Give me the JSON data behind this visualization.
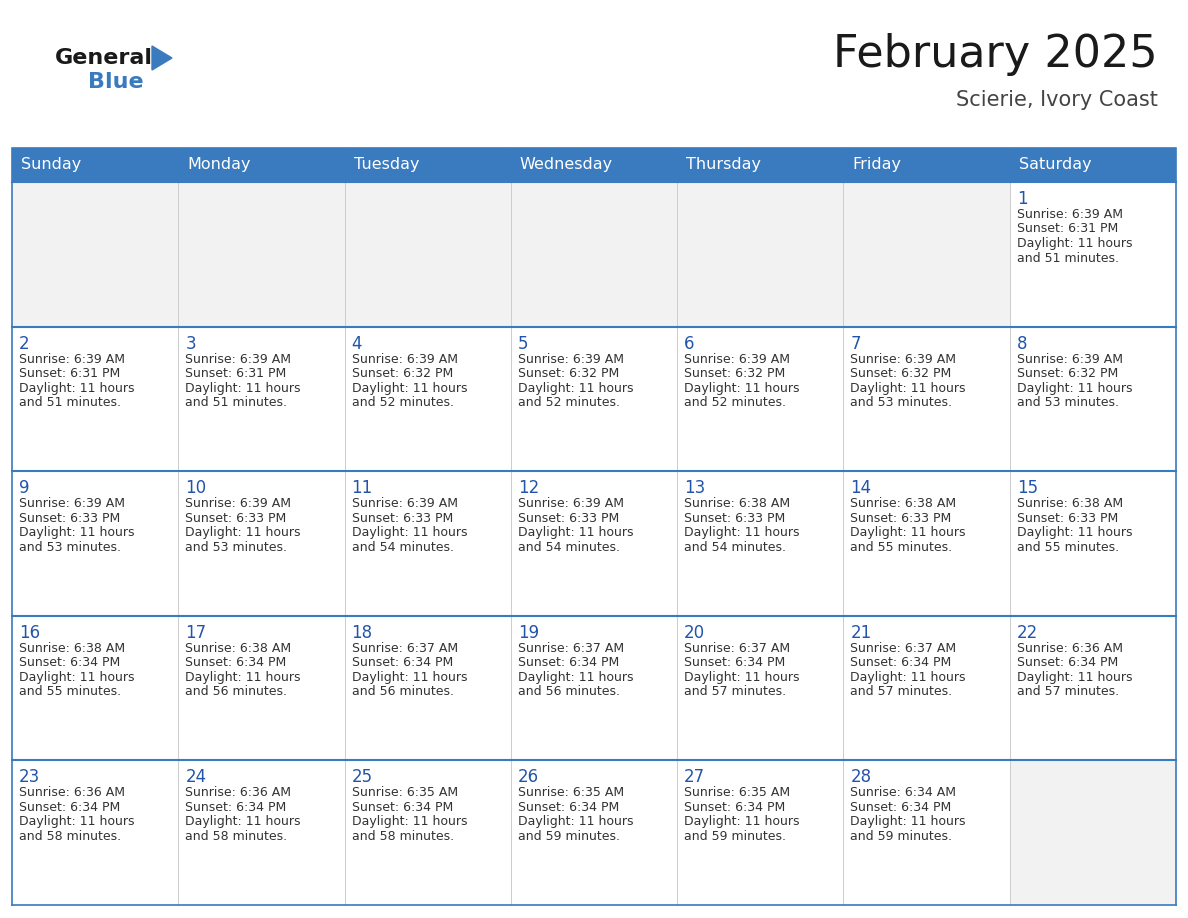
{
  "title": "February 2025",
  "subtitle": "Scierie, Ivory Coast",
  "days_of_week": [
    "Sunday",
    "Monday",
    "Tuesday",
    "Wednesday",
    "Thursday",
    "Friday",
    "Saturday"
  ],
  "header_bg": "#3a7abf",
  "header_text": "#ffffff",
  "cell_bg_white": "#ffffff",
  "cell_bg_gray": "#f2f2f2",
  "border_color": "#3a7abf",
  "cell_border_color": "#cccccc",
  "text_color": "#333333",
  "day_num_color": "#2255aa",
  "title_color": "#1a1a1a",
  "subtitle_color": "#444444",
  "logo_general_color": "#1a1a1a",
  "logo_blue_color": "#3a7abf",
  "calendar": [
    [
      null,
      null,
      null,
      null,
      null,
      null,
      1
    ],
    [
      2,
      3,
      4,
      5,
      6,
      7,
      8
    ],
    [
      9,
      10,
      11,
      12,
      13,
      14,
      15
    ],
    [
      16,
      17,
      18,
      19,
      20,
      21,
      22
    ],
    [
      23,
      24,
      25,
      26,
      27,
      28,
      null
    ]
  ],
  "cell_data": {
    "1": {
      "sunrise": "6:39 AM",
      "sunset": "6:31 PM",
      "daylight": "11 hours and 51 minutes."
    },
    "2": {
      "sunrise": "6:39 AM",
      "sunset": "6:31 PM",
      "daylight": "11 hours and 51 minutes."
    },
    "3": {
      "sunrise": "6:39 AM",
      "sunset": "6:31 PM",
      "daylight": "11 hours and 51 minutes."
    },
    "4": {
      "sunrise": "6:39 AM",
      "sunset": "6:32 PM",
      "daylight": "11 hours and 52 minutes."
    },
    "5": {
      "sunrise": "6:39 AM",
      "sunset": "6:32 PM",
      "daylight": "11 hours and 52 minutes."
    },
    "6": {
      "sunrise": "6:39 AM",
      "sunset": "6:32 PM",
      "daylight": "11 hours and 52 minutes."
    },
    "7": {
      "sunrise": "6:39 AM",
      "sunset": "6:32 PM",
      "daylight": "11 hours and 53 minutes."
    },
    "8": {
      "sunrise": "6:39 AM",
      "sunset": "6:32 PM",
      "daylight": "11 hours and 53 minutes."
    },
    "9": {
      "sunrise": "6:39 AM",
      "sunset": "6:33 PM",
      "daylight": "11 hours and 53 minutes."
    },
    "10": {
      "sunrise": "6:39 AM",
      "sunset": "6:33 PM",
      "daylight": "11 hours and 53 minutes."
    },
    "11": {
      "sunrise": "6:39 AM",
      "sunset": "6:33 PM",
      "daylight": "11 hours and 54 minutes."
    },
    "12": {
      "sunrise": "6:39 AM",
      "sunset": "6:33 PM",
      "daylight": "11 hours and 54 minutes."
    },
    "13": {
      "sunrise": "6:38 AM",
      "sunset": "6:33 PM",
      "daylight": "11 hours and 54 minutes."
    },
    "14": {
      "sunrise": "6:38 AM",
      "sunset": "6:33 PM",
      "daylight": "11 hours and 55 minutes."
    },
    "15": {
      "sunrise": "6:38 AM",
      "sunset": "6:33 PM",
      "daylight": "11 hours and 55 minutes."
    },
    "16": {
      "sunrise": "6:38 AM",
      "sunset": "6:34 PM",
      "daylight": "11 hours and 55 minutes."
    },
    "17": {
      "sunrise": "6:38 AM",
      "sunset": "6:34 PM",
      "daylight": "11 hours and 56 minutes."
    },
    "18": {
      "sunrise": "6:37 AM",
      "sunset": "6:34 PM",
      "daylight": "11 hours and 56 minutes."
    },
    "19": {
      "sunrise": "6:37 AM",
      "sunset": "6:34 PM",
      "daylight": "11 hours and 56 minutes."
    },
    "20": {
      "sunrise": "6:37 AM",
      "sunset": "6:34 PM",
      "daylight": "11 hours and 57 minutes."
    },
    "21": {
      "sunrise": "6:37 AM",
      "sunset": "6:34 PM",
      "daylight": "11 hours and 57 minutes."
    },
    "22": {
      "sunrise": "6:36 AM",
      "sunset": "6:34 PM",
      "daylight": "11 hours and 57 minutes."
    },
    "23": {
      "sunrise": "6:36 AM",
      "sunset": "6:34 PM",
      "daylight": "11 hours and 58 minutes."
    },
    "24": {
      "sunrise": "6:36 AM",
      "sunset": "6:34 PM",
      "daylight": "11 hours and 58 minutes."
    },
    "25": {
      "sunrise": "6:35 AM",
      "sunset": "6:34 PM",
      "daylight": "11 hours and 58 minutes."
    },
    "26": {
      "sunrise": "6:35 AM",
      "sunset": "6:34 PM",
      "daylight": "11 hours and 59 minutes."
    },
    "27": {
      "sunrise": "6:35 AM",
      "sunset": "6:34 PM",
      "daylight": "11 hours and 59 minutes."
    },
    "28": {
      "sunrise": "6:34 AM",
      "sunset": "6:34 PM",
      "daylight": "11 hours and 59 minutes."
    }
  },
  "figsize": [
    11.88,
    9.18
  ],
  "dpi": 100
}
